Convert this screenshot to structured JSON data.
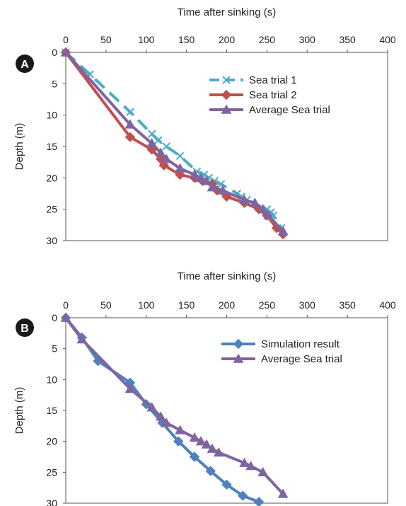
{
  "chart_data": [
    {
      "type": "line",
      "panel_label": "A",
      "xlabel": "Time after sinking (s)",
      "ylabel": "Depth (m)",
      "xlim": [
        0,
        400
      ],
      "ylim": [
        0,
        30
      ],
      "x_ticks": [
        "0",
        "50",
        "100",
        "150",
        "200",
        "250",
        "300",
        "350",
        "400"
      ],
      "y_ticks": [
        "0",
        "5",
        "10",
        "15",
        "20",
        "25",
        "30"
      ],
      "x_axis_position": "top",
      "y_inverted": true,
      "grid": false,
      "legend_position": "top-right",
      "series": [
        {
          "name": "Sea trial 1",
          "color": "#4bacc6",
          "marker": "x",
          "dash": true,
          "points": [
            [
              0,
              0
            ],
            [
              30,
              3.5
            ],
            [
              80,
              9.5
            ],
            [
              107,
              13
            ],
            [
              115,
              14
            ],
            [
              125,
              15
            ],
            [
              142,
              16.5
            ],
            [
              163,
              19
            ],
            [
              172,
              19.5
            ],
            [
              178,
              20
            ],
            [
              185,
              20.5
            ],
            [
              193,
              21
            ],
            [
              213,
              22.5
            ],
            [
              218,
              23
            ],
            [
              225,
              23.5
            ],
            [
              250,
              25
            ],
            [
              255,
              25.5
            ],
            [
              258,
              26
            ],
            [
              268,
              28
            ]
          ]
        },
        {
          "name": "Sea trial 2",
          "color": "#c0504d",
          "marker": "diamond",
          "dash": false,
          "points": [
            [
              0,
              0
            ],
            [
              80,
              13.5
            ],
            [
              107,
              15.5
            ],
            [
              118,
              17
            ],
            [
              122,
              18
            ],
            [
              142,
              19.5
            ],
            [
              160,
              20
            ],
            [
              170,
              20.5
            ],
            [
              182,
              21
            ],
            [
              188,
              22
            ],
            [
              200,
              23
            ],
            [
              222,
              24
            ],
            [
              240,
              25
            ],
            [
              250,
              26
            ],
            [
              262,
              28
            ],
            [
              270,
              29
            ]
          ]
        },
        {
          "name": "Average Sea trial",
          "color": "#8064a2",
          "marker": "triangle",
          "dash": false,
          "points": [
            [
              0,
              0
            ],
            [
              80,
              11.5
            ],
            [
              107,
              14.5
            ],
            [
              118,
              16
            ],
            [
              125,
              17
            ],
            [
              142,
              18.5
            ],
            [
              160,
              19.5
            ],
            [
              168,
              20
            ],
            [
              175,
              20.5
            ],
            [
              182,
              21.5
            ],
            [
              195,
              22
            ],
            [
              222,
              23.5
            ],
            [
              235,
              24
            ],
            [
              245,
              25
            ],
            [
              252,
              26
            ],
            [
              270,
              28.5
            ]
          ]
        }
      ]
    },
    {
      "type": "line",
      "panel_label": "B",
      "xlabel": "Time after sinking (s)",
      "ylabel": "Depth (m)",
      "xlim": [
        0,
        400
      ],
      "ylim": [
        0,
        30
      ],
      "x_ticks": [
        "0",
        "50",
        "100",
        "150",
        "200",
        "250",
        "300",
        "350",
        "400"
      ],
      "y_ticks": [
        "0",
        "5",
        "10",
        "15",
        "20",
        "25",
        "30"
      ],
      "x_axis_position": "top",
      "y_inverted": true,
      "grid": false,
      "legend_position": "top-right",
      "series": [
        {
          "name": "Simulation result",
          "color": "#4f81bd",
          "marker": "diamond",
          "dash": false,
          "points": [
            [
              0,
              0
            ],
            [
              20,
              3.2
            ],
            [
              40,
              7
            ],
            [
              80,
              10.5
            ],
            [
              100,
              14
            ],
            [
              120,
              17
            ],
            [
              140,
              20
            ],
            [
              160,
              22.5
            ],
            [
              180,
              24.8
            ],
            [
              200,
              27
            ],
            [
              220,
              28.8
            ],
            [
              240,
              29.8
            ]
          ]
        },
        {
          "name": "Average Sea trial",
          "color": "#8064a2",
          "marker": "triangle",
          "dash": false,
          "points": [
            [
              0,
              0
            ],
            [
              20,
              3.5
            ],
            [
              80,
              11.5
            ],
            [
              107,
              14.5
            ],
            [
              118,
              16
            ],
            [
              125,
              17
            ],
            [
              142,
              18.2
            ],
            [
              160,
              19.4
            ],
            [
              168,
              20
            ],
            [
              175,
              20.5
            ],
            [
              182,
              21.2
            ],
            [
              190,
              21.8
            ],
            [
              222,
              23.5
            ],
            [
              230,
              24
            ],
            [
              245,
              25
            ],
            [
              270,
              28.5
            ]
          ]
        }
      ]
    }
  ]
}
